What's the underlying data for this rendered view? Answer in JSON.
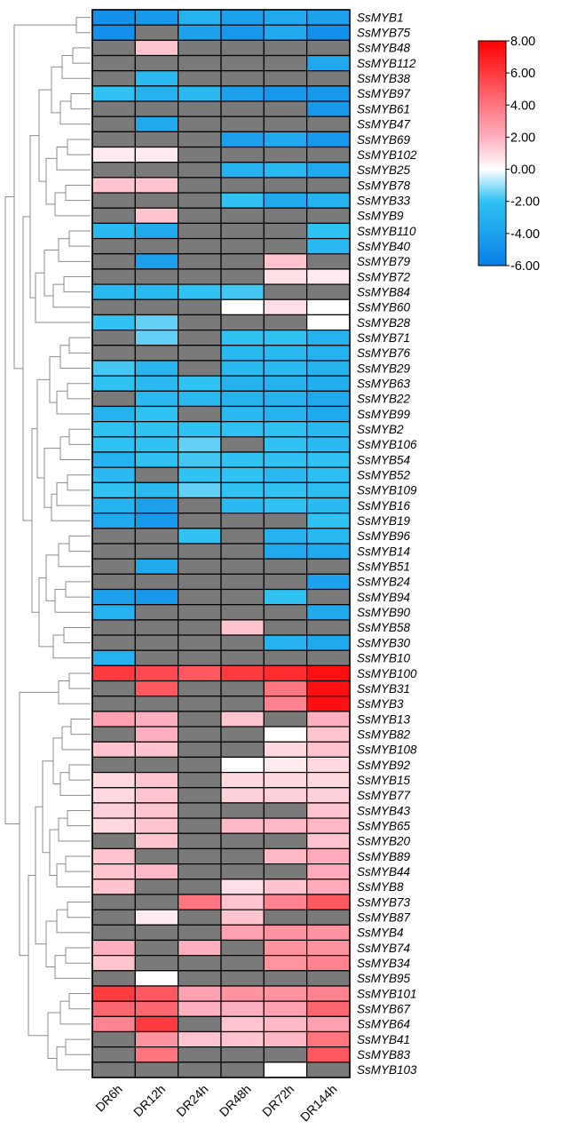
{
  "chart_data": {
    "type": "heatmap",
    "rows": [
      "SsMYB1",
      "SsMYB75",
      "SsMYB48",
      "SsMYB112",
      "SsMYB38",
      "SsMYB97",
      "SsMYB61",
      "SsMYB47",
      "SsMYB69",
      "SsMYB102",
      "SsMYB25",
      "SsMYB78",
      "SsMYB33",
      "SsMYB9",
      "SsMYB110",
      "SsMYB40",
      "SsMYB79",
      "SsMYB72",
      "SsMYB84",
      "SsMYB60",
      "SsMYB28",
      "SsMYB71",
      "SsMYB76",
      "SsMYB29",
      "SsMYB63",
      "SsMYB22",
      "SsMYB99",
      "SsMYB2",
      "SsMYB106",
      "SsMYB54",
      "SsMYB52",
      "SsMYB109",
      "SsMYB16",
      "SsMYB19",
      "SsMYB96",
      "SsMYB14",
      "SsMYB51",
      "SsMYB24",
      "SsMYB94",
      "SsMYB90",
      "SsMYB58",
      "SsMYB30",
      "SsMYB10",
      "SsMYB100",
      "SsMYB31",
      "SsMYB3",
      "SsMYB13",
      "SsMYB82",
      "SsMYB108",
      "SsMYB92",
      "SsMYB15",
      "SsMYB77",
      "SsMYB43",
      "SsMYB65",
      "SsMYB20",
      "SsMYB89",
      "SsMYB44",
      "SsMYB8",
      "SsMYB73",
      "SsMYB87",
      "SsMYB4",
      "SsMYB74",
      "SsMYB34",
      "SsMYB95",
      "SsMYB101",
      "SsMYB67",
      "SsMYB64",
      "SsMYB41",
      "SsMYB83",
      "SsMYB103"
    ],
    "columns": [
      "DR6h",
      "DR12h",
      "DR24h",
      "DR48h",
      "DR72h",
      "DR144h"
    ],
    "values": [
      [
        -5,
        -4.5,
        -3,
        -4,
        -3.5,
        -4
      ],
      [
        -5,
        null,
        -4,
        -4.5,
        -3.5,
        -5
      ],
      [
        null,
        1.5,
        null,
        null,
        null,
        null
      ],
      [
        null,
        null,
        null,
        null,
        null,
        -3.5
      ],
      [
        null,
        -2.5,
        null,
        null,
        null,
        null
      ],
      [
        -2,
        -3,
        -2.5,
        -4,
        -4.5,
        -4.5
      ],
      [
        null,
        null,
        null,
        null,
        null,
        -4.5
      ],
      [
        null,
        -3.5,
        null,
        null,
        null,
        null
      ],
      [
        null,
        null,
        null,
        -4,
        -3.5,
        -4.5
      ],
      [
        0.5,
        0.5,
        null,
        null,
        null,
        null
      ],
      [
        null,
        null,
        null,
        -3,
        -2.5,
        -3.5
      ],
      [
        1.5,
        1.5,
        null,
        null,
        null,
        null
      ],
      [
        null,
        null,
        null,
        -2,
        -3.5,
        -3
      ],
      [
        null,
        1.5,
        null,
        null,
        null,
        null
      ],
      [
        -2.5,
        -3.5,
        null,
        null,
        null,
        -2
      ],
      [
        null,
        null,
        null,
        null,
        null,
        -2.5
      ],
      [
        null,
        -4,
        null,
        null,
        1.5,
        null
      ],
      [
        null,
        null,
        null,
        null,
        0.8,
        0.5
      ],
      [
        -2.5,
        -2.5,
        -2,
        -1.8,
        null,
        null
      ],
      [
        null,
        null,
        null,
        0,
        0.8,
        0
      ],
      [
        -2,
        -1.5,
        null,
        null,
        null,
        0
      ],
      [
        null,
        -1.5,
        null,
        -2,
        -2,
        -3
      ],
      [
        null,
        null,
        null,
        -2.5,
        -2.5,
        -3
      ],
      [
        -1.8,
        -2.8,
        null,
        -2.5,
        -2.5,
        -3
      ],
      [
        -2,
        -2.5,
        -2,
        -3,
        -3,
        -3.2
      ],
      [
        null,
        -2.5,
        -2.5,
        -3,
        -3,
        -3.5
      ],
      [
        -3,
        -2,
        null,
        -2.5,
        -3,
        -3.5
      ],
      [
        -2,
        -2,
        -2,
        -2,
        -2,
        -2.5
      ],
      [
        -2,
        -2,
        -1.5,
        null,
        -2,
        -2.5
      ],
      [
        -3,
        -2,
        -1.8,
        -2,
        -2,
        -2
      ],
      [
        -2.5,
        null,
        -2,
        -2,
        -2.5,
        -2.2
      ],
      [
        -2,
        -2.5,
        -1.5,
        -2,
        -2,
        -2.2
      ],
      [
        -3,
        -4,
        null,
        -2.5,
        -2,
        -2.5
      ],
      [
        -3.5,
        -4.5,
        null,
        null,
        null,
        -2
      ],
      [
        null,
        null,
        -2,
        null,
        -3,
        -2.5
      ],
      [
        null,
        null,
        null,
        null,
        -3.5,
        -3.5
      ],
      [
        null,
        -3.5,
        null,
        null,
        null,
        null
      ],
      [
        null,
        null,
        null,
        null,
        null,
        -4
      ],
      [
        -4,
        -4.5,
        null,
        null,
        -2,
        null
      ],
      [
        -3,
        null,
        null,
        null,
        null,
        -3.5
      ],
      [
        null,
        null,
        null,
        1.5,
        null,
        null
      ],
      [
        null,
        null,
        null,
        null,
        -3,
        -3.5
      ],
      [
        -3,
        null,
        null,
        null,
        null,
        null
      ],
      [
        6,
        5.5,
        5,
        6,
        6.5,
        7.5
      ],
      [
        null,
        5,
        null,
        null,
        4,
        7.5
      ],
      [
        null,
        null,
        null,
        null,
        3.5,
        7.5
      ],
      [
        2.5,
        2,
        null,
        1.5,
        null,
        2
      ],
      [
        null,
        2,
        null,
        null,
        0,
        1.5
      ],
      [
        1.5,
        1.5,
        null,
        null,
        1,
        1.5
      ],
      [
        null,
        null,
        null,
        0,
        0.5,
        1
      ],
      [
        1,
        1.5,
        null,
        1,
        1,
        1
      ],
      [
        1,
        1.5,
        null,
        1.2,
        1.2,
        1.2
      ],
      [
        1.2,
        1.5,
        null,
        null,
        null,
        1.5
      ],
      [
        1,
        1.5,
        null,
        1.8,
        1.8,
        1.8
      ],
      [
        null,
        1.5,
        null,
        null,
        null,
        1.5
      ],
      [
        1.5,
        null,
        null,
        null,
        1.8,
        2.2
      ],
      [
        1.5,
        1.8,
        null,
        null,
        null,
        2.2
      ],
      [
        1.5,
        null,
        null,
        0.8,
        1.5,
        2.2
      ],
      [
        null,
        null,
        4,
        1.5,
        3.5,
        5
      ],
      [
        null,
        0.5,
        null,
        1.5,
        null,
        null
      ],
      [
        null,
        null,
        null,
        2.5,
        3,
        3
      ],
      [
        2,
        null,
        2,
        null,
        3,
        3
      ],
      [
        1.5,
        null,
        null,
        null,
        3,
        3.5
      ],
      [
        null,
        0,
        null,
        null,
        null,
        null
      ],
      [
        6,
        5,
        2.5,
        3,
        3,
        3.5
      ],
      [
        4.5,
        4.5,
        2,
        2,
        2.5,
        4.5
      ],
      [
        3.5,
        6,
        null,
        1.5,
        1.8,
        2.5
      ],
      [
        null,
        3,
        1.5,
        1.5,
        1.8,
        4
      ],
      [
        null,
        4,
        null,
        null,
        null,
        5
      ],
      [
        null,
        null,
        null,
        null,
        0,
        null
      ]
    ],
    "colorbar": {
      "ticks": [
        "8.00",
        "6.00",
        "4.00",
        "2.00",
        "0.00",
        "-2.00",
        "-4.00",
        "-6.00"
      ],
      "range": [
        -6,
        8
      ],
      "colors": {
        "min": "#0a7fe6",
        "mid_low": "#2fc2f2",
        "zero": "#ffffff",
        "high": "#ff0000",
        "missing": "#7a7a7a"
      }
    },
    "dendrogram": "left, hierarchical clustering of rows"
  }
}
